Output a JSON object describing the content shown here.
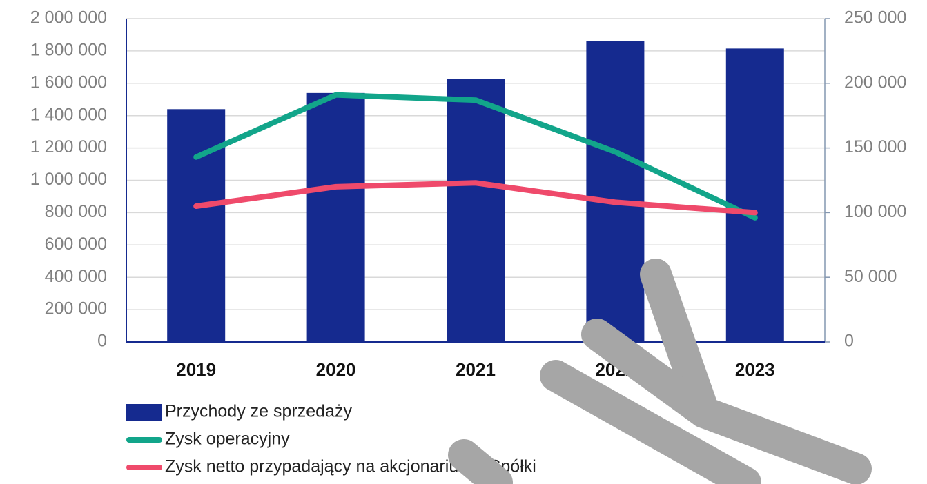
{
  "chart_data": {
    "type": "bar_line",
    "categories": [
      "2019",
      "2020",
      "2021",
      "2022",
      "2023"
    ],
    "series": [
      {
        "name": "Przychody ze sprzedaży",
        "type": "bar",
        "color": "#152a8f",
        "values": [
          1440000,
          1540000,
          1625000,
          1860000,
          1815000
        ]
      },
      {
        "name": "Zysk operacyjny",
        "type": "line",
        "axis": "y2",
        "color": "#12a58a",
        "values": [
          143000,
          191000,
          187000,
          147000,
          96000
        ]
      },
      {
        "name": "Zysk netto przypadający na akcjonariuszy Spółki",
        "type": "line",
        "axis": "y2",
        "color": "#ef4a6b",
        "values": [
          105000,
          120000,
          123000,
          108000,
          100000
        ]
      }
    ],
    "ylim": [
      0,
      2000000
    ],
    "yticks": [
      0,
      {
        "value": 200000,
        "label": "200 000"
      },
      {
        "value": 400000,
        "label": "400 000"
      },
      {
        "value": 600000,
        "label": "600 000"
      },
      {
        "value": 800000,
        "label": "800 000"
      },
      {
        "value": 1000000,
        "label": "1 000 000"
      },
      {
        "value": 1200000,
        "label": "1 200 000"
      },
      {
        "value": 1400000,
        "label": "1 400 000"
      },
      {
        "value": 1600000,
        "label": "1 600 000"
      },
      {
        "value": 1800000,
        "label": "1 800 000"
      },
      {
        "value": 2000000,
        "label": "2 000 000"
      }
    ],
    "y2lim": [
      0,
      250000
    ],
    "y2ticks": [
      0,
      {
        "value": 50000,
        "label": "50 000"
      },
      {
        "value": 100000,
        "label": "100 000"
      },
      {
        "value": 150000,
        "label": "150 000"
      },
      {
        "value": 200000,
        "label": "200 000"
      },
      {
        "value": 250000,
        "label": "250 000"
      }
    ],
    "grid": true,
    "legend": "bottom"
  }
}
